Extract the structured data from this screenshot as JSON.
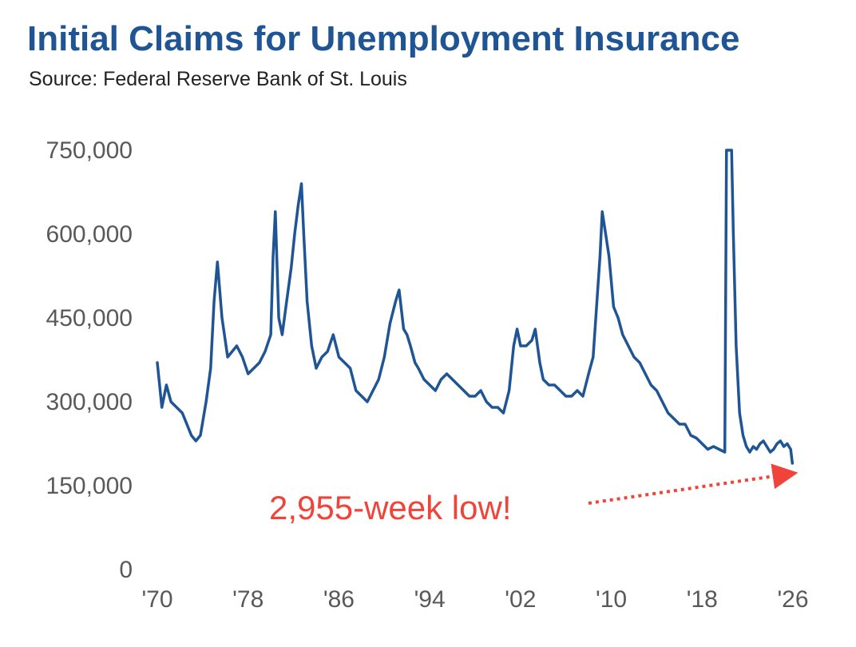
{
  "header": {
    "title": "Initial Claims for Unemployment Insurance",
    "subtitle": "Source: Federal Reserve Bank of St. Louis"
  },
  "colors": {
    "title": "#1f5594",
    "line": "#1f5594",
    "annotation": "#f0433a",
    "axis_text": "#595959"
  },
  "chart_data": {
    "type": "line",
    "title": "Initial Claims for Unemployment Insurance",
    "subtitle": "Source: Federal Reserve Bank of St. Louis",
    "xlabel": "",
    "ylabel": "",
    "xlim": [
      1970,
      2026
    ],
    "ylim": [
      0,
      750000
    ],
    "x_ticks": [
      1970,
      1978,
      1986,
      1994,
      2002,
      2010,
      2018,
      2026
    ],
    "x_tick_labels": [
      "'70",
      "'78",
      "'86",
      "'94",
      "'02",
      "'10",
      "'18",
      "'26"
    ],
    "y_ticks": [
      0,
      150000,
      300000,
      450000,
      600000,
      750000
    ],
    "y_tick_labels": [
      "0",
      "150,000",
      "300,000",
      "450,000",
      "600,000",
      "750,000"
    ],
    "grid": false,
    "legend": "none",
    "annotation": {
      "text": "2,955-week low!",
      "points_to": {
        "x": 2025.9,
        "y": 190000
      }
    },
    "series": [
      {
        "color": "#1f5594",
        "x": [
          1970.0,
          1970.4,
          1970.8,
          1971.2,
          1971.7,
          1972.2,
          1972.6,
          1973.0,
          1973.4,
          1973.8,
          1974.3,
          1974.7,
          1975.0,
          1975.3,
          1975.7,
          1976.2,
          1976.6,
          1977.0,
          1977.5,
          1978.0,
          1978.5,
          1979.0,
          1979.5,
          1980.0,
          1980.2,
          1980.4,
          1980.7,
          1981.0,
          1981.4,
          1981.8,
          1982.1,
          1982.4,
          1982.7,
          1982.9,
          1983.2,
          1983.6,
          1984.0,
          1984.5,
          1985.0,
          1985.5,
          1986.0,
          1986.5,
          1987.0,
          1987.5,
          1988.0,
          1988.5,
          1989.0,
          1989.5,
          1990.0,
          1990.5,
          1991.0,
          1991.3,
          1991.7,
          1992.0,
          1992.3,
          1992.7,
          1993.0,
          1993.5,
          1994.0,
          1994.5,
          1995.0,
          1995.5,
          1996.0,
          1996.5,
          1997.0,
          1997.5,
          1998.0,
          1998.5,
          1999.0,
          1999.5,
          2000.0,
          2000.5,
          2001.0,
          2001.4,
          2001.7,
          2002.0,
          2002.5,
          2003.0,
          2003.3,
          2003.7,
          2004.0,
          2004.5,
          2005.0,
          2005.5,
          2006.0,
          2006.5,
          2007.0,
          2007.5,
          2008.0,
          2008.4,
          2008.7,
          2009.0,
          2009.2,
          2009.5,
          2009.8,
          2010.2,
          2010.6,
          2011.0,
          2011.5,
          2012.0,
          2012.5,
          2013.0,
          2013.5,
          2014.0,
          2014.5,
          2015.0,
          2015.5,
          2016.0,
          2016.5,
          2017.0,
          2017.5,
          2018.0,
          2018.5,
          2019.0,
          2019.5,
          2020.0,
          2020.15,
          2020.22,
          2020.6,
          2020.75,
          2021.0,
          2021.3,
          2021.6,
          2021.9,
          2022.2,
          2022.5,
          2022.8,
          2023.1,
          2023.4,
          2023.7,
          2024.0,
          2024.3,
          2024.6,
          2024.9,
          2025.2,
          2025.5,
          2025.8,
          2025.95
        ],
        "values": [
          370000,
          290000,
          330000,
          300000,
          290000,
          280000,
          260000,
          240000,
          230000,
          240000,
          300000,
          360000,
          480000,
          550000,
          450000,
          380000,
          390000,
          400000,
          380000,
          350000,
          360000,
          370000,
          390000,
          420000,
          560000,
          640000,
          450000,
          420000,
          480000,
          540000,
          600000,
          650000,
          690000,
          600000,
          480000,
          400000,
          360000,
          380000,
          390000,
          420000,
          380000,
          370000,
          360000,
          320000,
          310000,
          300000,
          320000,
          340000,
          380000,
          440000,
          480000,
          500000,
          430000,
          420000,
          400000,
          370000,
          360000,
          340000,
          330000,
          320000,
          340000,
          350000,
          340000,
          330000,
          320000,
          310000,
          310000,
          320000,
          300000,
          290000,
          290000,
          280000,
          320000,
          400000,
          430000,
          400000,
          400000,
          410000,
          430000,
          370000,
          340000,
          330000,
          330000,
          320000,
          310000,
          310000,
          320000,
          310000,
          350000,
          380000,
          470000,
          560000,
          640000,
          600000,
          560000,
          470000,
          450000,
          420000,
          400000,
          380000,
          370000,
          350000,
          330000,
          320000,
          300000,
          280000,
          270000,
          260000,
          260000,
          240000,
          235000,
          225000,
          215000,
          220000,
          215000,
          210000,
          750000,
          750000,
          750000,
          600000,
          400000,
          280000,
          240000,
          220000,
          210000,
          220000,
          215000,
          225000,
          230000,
          220000,
          210000,
          215000,
          225000,
          230000,
          220000,
          225000,
          215000,
          190000
        ]
      }
    ]
  }
}
